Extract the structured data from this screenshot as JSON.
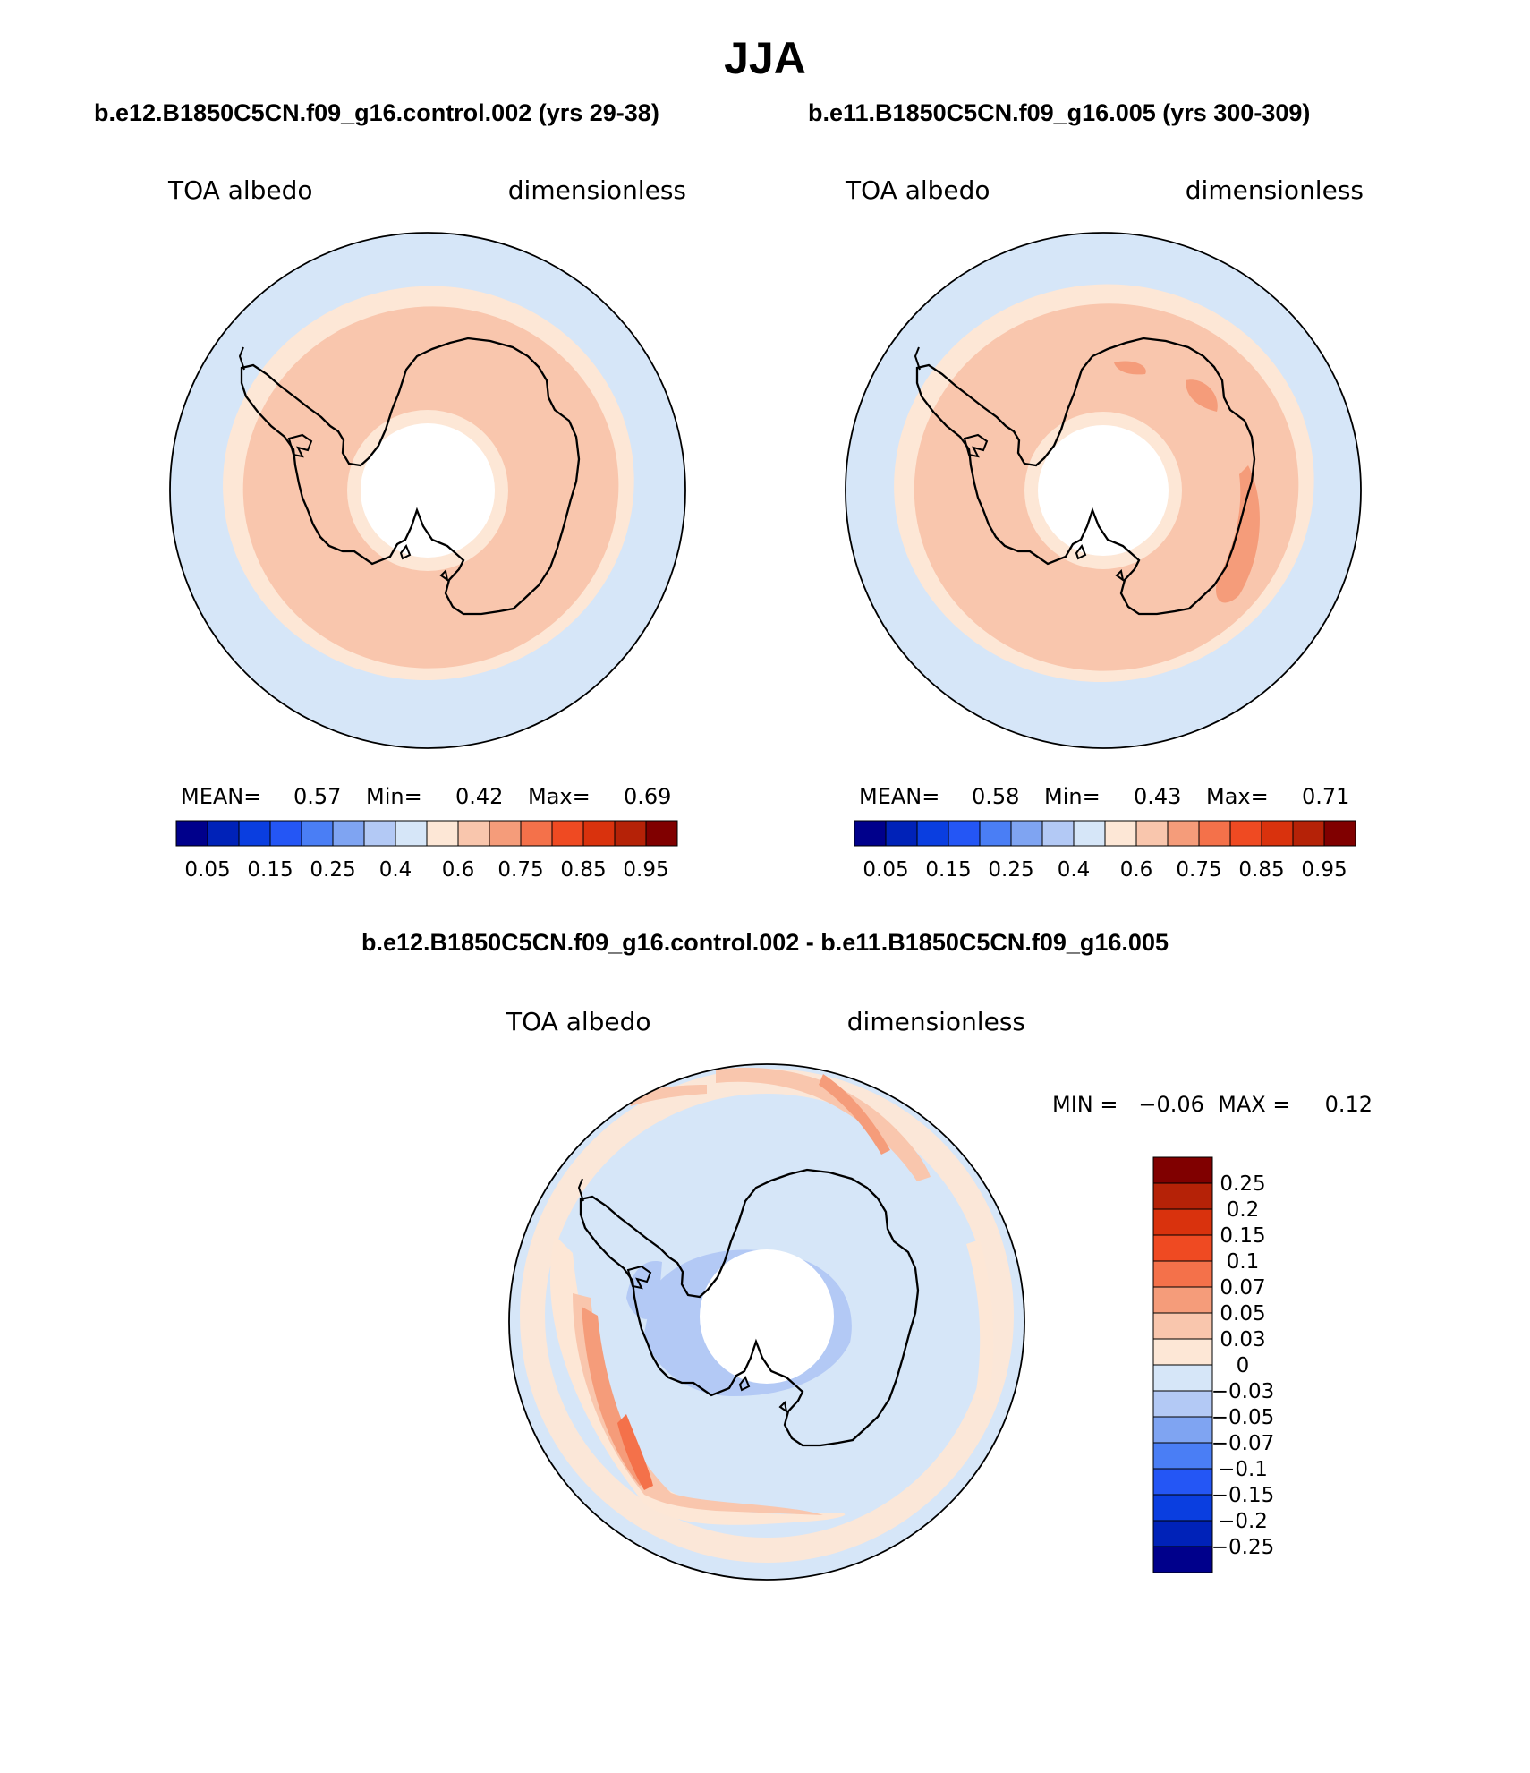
{
  "title": "JJA",
  "panel_left": {
    "case_title": "b.e12.B1850C5CN.f09_g16.control.002 (yrs 29-38)",
    "variable": "TOA albedo",
    "units": "dimensionless",
    "stats": {
      "mean_label": "MEAN=",
      "mean": "0.57",
      "min_label": "Min=",
      "min": "0.42",
      "max_label": "Max=",
      "max": "0.69"
    },
    "colorbar_labels": [
      "0.05",
      "0.15",
      "0.25",
      "0.4",
      "0.6",
      "0.75",
      "0.85",
      "0.95"
    ]
  },
  "panel_right": {
    "case_title": "b.e11.B1850C5CN.f09_g16.005 (yrs 300-309)",
    "variable": "TOA albedo",
    "units": "dimensionless",
    "stats": {
      "mean_label": "MEAN=",
      "mean": "0.58",
      "min_label": "Min=",
      "min": "0.43",
      "max_label": "Max=",
      "max": "0.71"
    },
    "colorbar_labels": [
      "0.05",
      "0.15",
      "0.25",
      "0.4",
      "0.6",
      "0.75",
      "0.85",
      "0.95"
    ]
  },
  "panel_diff": {
    "case_title": "b.e12.B1850C5CN.f09_g16.control.002 - b.e11.B1850C5CN.f09_g16.005",
    "variable": "TOA albedo",
    "units": "dimensionless",
    "minmax_text": "MIN =   −0.06  MAX =     0.12",
    "colorbar_labels": [
      "0.25",
      "0.2",
      "0.15",
      "0.1",
      "0.07",
      "0.05",
      "0.03",
      "0",
      "−0.03",
      "−0.05",
      "−0.07",
      "−0.1",
      "−0.15",
      "−0.2",
      "−0.25"
    ]
  },
  "colors": {
    "palette": [
      "#00008b",
      "#0022b8",
      "#0a3ee0",
      "#2456f5",
      "#4a7ef5",
      "#7fa4f2",
      "#b3c9f5",
      "#d6e6f8",
      "#fde7d6",
      "#f9c6ad",
      "#f59c7a",
      "#f4714a",
      "#ef4a22",
      "#d9320d",
      "#b52207",
      "#800000"
    ],
    "land_ocean_low": "#d6e6f8",
    "sea_ice": "#fde7d6",
    "albedo_mid": "#f9c6ad",
    "albedo_high": "#f59c7a"
  }
}
